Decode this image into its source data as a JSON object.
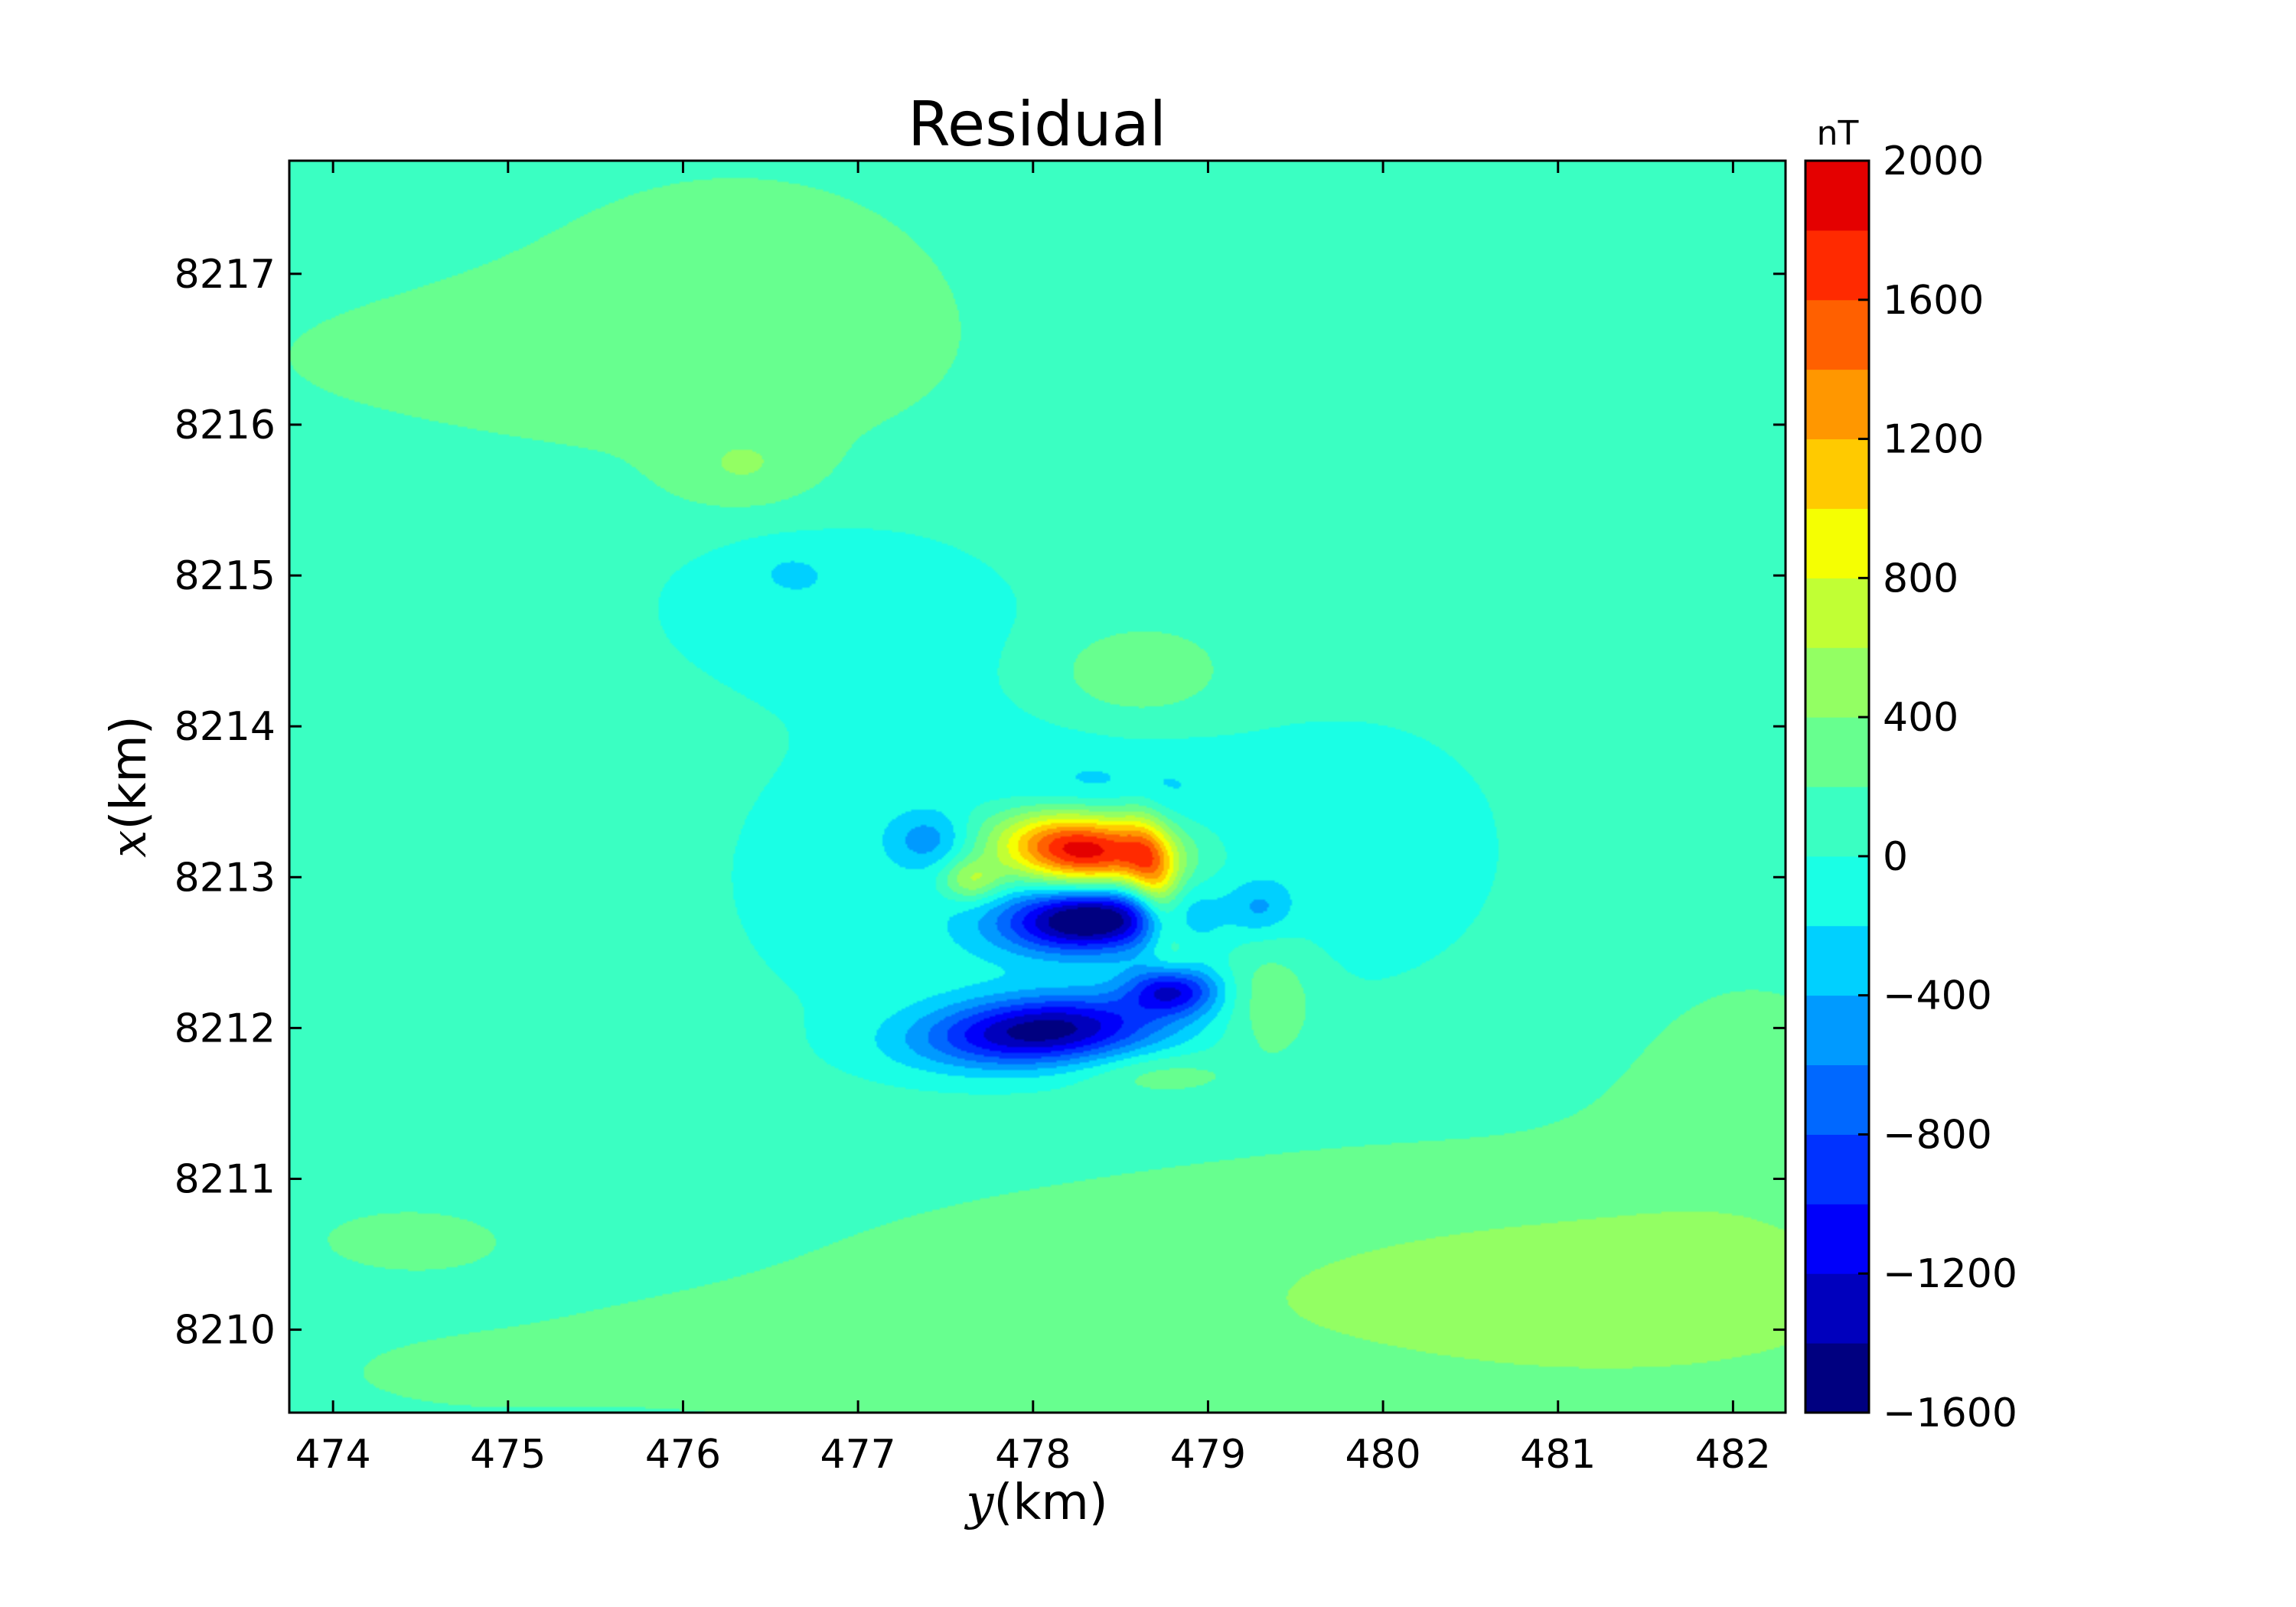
{
  "chart_data": {
    "type": "heatmap",
    "subtype": "filled-contour",
    "title": "Residual",
    "xlabel": {
      "var": "y",
      "unit": "(km)"
    },
    "ylabel": {
      "var": "x",
      "unit": "(km)"
    },
    "xlim": [
      473.75,
      482.3
    ],
    "ylim": [
      8209.45,
      8217.75
    ],
    "xticks": [
      474,
      475,
      476,
      477,
      478,
      479,
      480,
      481,
      482
    ],
    "yticks": [
      8210,
      8211,
      8212,
      8213,
      8214,
      8215,
      8216,
      8217
    ],
    "grid": false,
    "colorbar": {
      "unit": "nT",
      "range": [
        -1600,
        2000
      ],
      "levels": [
        -1600,
        -1400,
        -1200,
        -1000,
        -800,
        -600,
        -400,
        -200,
        0,
        200,
        400,
        600,
        800,
        1000,
        1200,
        1400,
        1600,
        1800,
        2000
      ],
      "tick_labels": [
        "2000",
        "1600",
        "1200",
        "800",
        "400",
        "0",
        "−400",
        "−800",
        "−1200",
        "−1600"
      ],
      "tick_values": [
        2000,
        1600,
        1200,
        800,
        400,
        0,
        -400,
        -800,
        -1200,
        -1600
      ],
      "colors": [
        "#000080",
        "#0000bd",
        "#0000fa",
        "#0032ff",
        "#0068ff",
        "#009aff",
        "#00d0ff",
        "#1affe5",
        "#3affc2",
        "#67ff8f",
        "#93ff63",
        "#c1ff34",
        "#f5ff02",
        "#ffca00",
        "#ff9700",
        "#ff6000",
        "#ff2a00",
        "#e40000",
        "#a70000"
      ]
    },
    "field": {
      "background": 100,
      "features": [
        {
          "y": 478.28,
          "x": 8213.18,
          "amp": 2050,
          "sy": 0.34,
          "sx": 0.17,
          "rot": -0.1
        },
        {
          "y": 478.7,
          "x": 8212.95,
          "amp": 900,
          "sy": 0.1,
          "sx": 0.32,
          "rot": 0.2
        },
        {
          "y": 477.65,
          "x": 8212.98,
          "amp": 650,
          "sy": 0.12,
          "sx": 0.1,
          "rot": 0
        },
        {
          "y": 478.32,
          "x": 8212.72,
          "amp": -1650,
          "sy": 0.34,
          "sx": 0.15,
          "rot": 0.05
        },
        {
          "y": 478.05,
          "x": 8211.98,
          "amp": -1500,
          "sy": 0.48,
          "sx": 0.16,
          "rot": 0.08
        },
        {
          "y": 478.8,
          "x": 8212.25,
          "amp": -1100,
          "sy": 0.18,
          "sx": 0.11,
          "rot": 0
        },
        {
          "y": 477.4,
          "x": 8213.25,
          "amp": -450,
          "sy": 0.16,
          "sx": 0.13,
          "rot": 0
        },
        {
          "y": 479.3,
          "x": 8212.8,
          "amp": -350,
          "sy": 0.12,
          "sx": 0.12,
          "rot": 0
        },
        {
          "y": 478.6,
          "x": 8214.35,
          "amp": 350,
          "sy": 0.35,
          "sx": 0.22,
          "rot": 0
        },
        {
          "y": 479.35,
          "x": 8212.2,
          "amp": 350,
          "sy": 0.2,
          "sx": 0.28,
          "rot": 0
        },
        {
          "y": 478.7,
          "x": 8211.7,
          "amp": 250,
          "sy": 0.3,
          "sx": 0.1,
          "rot": 0
        },
        {
          "y": 478.5,
          "x": 8213.6,
          "amp": -200,
          "sy": 0.45,
          "sx": 0.15,
          "rot": 0
        },
        {
          "y": 478.0,
          "x": 8213.0,
          "amp": -240,
          "sy": 1.3,
          "sx": 0.95,
          "rot": 0
        },
        {
          "y": 480.0,
          "x": 8213.2,
          "amp": -170,
          "sy": 0.5,
          "sx": 0.55,
          "rot": 0
        },
        {
          "y": 476.8,
          "x": 8214.85,
          "amp": -240,
          "sy": 0.7,
          "sx": 0.4,
          "rot": 0
        },
        {
          "y": 476.6,
          "x": 8215.05,
          "amp": -120,
          "sy": 0.18,
          "sx": 0.12,
          "rot": 0
        },
        {
          "y": 476.3,
          "x": 8216.75,
          "amp": 200,
          "sy": 1.0,
          "sx": 0.75,
          "rot": 0
        },
        {
          "y": 475.0,
          "x": 8216.45,
          "amp": 160,
          "sy": 1.2,
          "sx": 0.35,
          "rot": 0
        },
        {
          "y": 476.35,
          "x": 8215.7,
          "amp": 250,
          "sy": 0.3,
          "sx": 0.2,
          "rot": 0
        },
        {
          "y": 480.2,
          "x": 8210.25,
          "amp": 300,
          "sy": 2.4,
          "sx": 0.7,
          "rot": 0
        },
        {
          "y": 481.6,
          "x": 8210.2,
          "amp": 220,
          "sy": 0.9,
          "sx": 0.35,
          "rot": 0
        },
        {
          "y": 482.1,
          "x": 8211.6,
          "amp": 150,
          "sy": 0.6,
          "sx": 0.7,
          "rot": 0
        },
        {
          "y": 476.3,
          "x": 8209.8,
          "amp": 120,
          "sy": 1.4,
          "sx": 0.3,
          "rot": 0
        },
        {
          "y": 474.4,
          "x": 8210.6,
          "amp": 130,
          "sy": 0.5,
          "sx": 0.2,
          "rot": 0
        },
        {
          "y": 474.8,
          "x": 8209.7,
          "amp": 120,
          "sy": 0.5,
          "sx": 0.15,
          "rot": 0
        }
      ]
    }
  }
}
